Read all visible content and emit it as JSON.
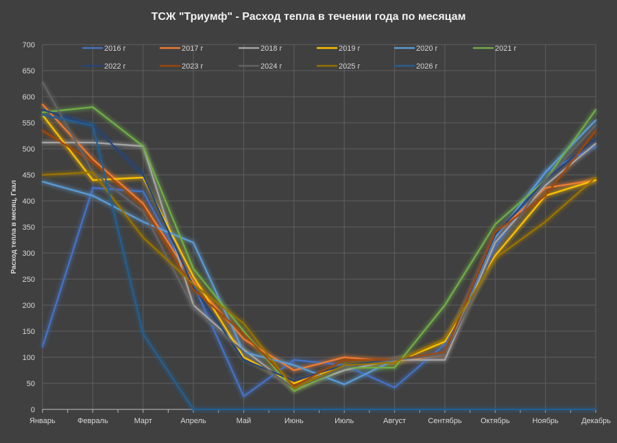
{
  "chart_data": {
    "type": "line",
    "title": "ТСЖ \"Триумф\" - Расход тепла в течении года по месяцам",
    "ylabel": "Расход тепла в месяц, Гкал",
    "xlabel": "",
    "ylim": [
      0,
      700
    ],
    "yticks": [
      0,
      50,
      100,
      150,
      200,
      250,
      300,
      350,
      400,
      450,
      500,
      550,
      600,
      650,
      700
    ],
    "grid": true,
    "legend_position": "top",
    "categories": [
      "Январь",
      "Февраль",
      "Март",
      "Апрель",
      "Май",
      "Июнь",
      "Июль",
      "Август",
      "Сентябрь",
      "Октябрь",
      "Ноябрь",
      "Декабрь"
    ],
    "series": [
      {
        "name": "2016 г",
        "color": "#4472c4",
        "values": [
          120,
          425,
          418,
          240,
          25,
          95,
          85,
          42,
          125,
          310,
          455,
          505
        ]
      },
      {
        "name": "2017 г",
        "color": "#ed7d31",
        "values": [
          585,
          480,
          395,
          245,
          135,
          75,
          100,
          92,
          105,
          335,
          425,
          440
        ]
      },
      {
        "name": "2018 г",
        "color": "#a5a5a5",
        "values": [
          512,
          512,
          505,
          200,
          115,
          40,
          75,
          95,
          95,
          320,
          430,
          510
        ]
      },
      {
        "name": "2019 г",
        "color": "#ffc000",
        "values": [
          565,
          440,
          445,
          255,
          100,
          50,
          85,
          90,
          130,
          295,
          410,
          440
        ]
      },
      {
        "name": "2020 г",
        "color": "#5b9bd5",
        "values": [
          437,
          410,
          360,
          320,
          110,
          85,
          48,
          95,
          110,
          330,
          455,
          555
        ]
      },
      {
        "name": "2021 г",
        "color": "#70ad47",
        "values": [
          570,
          580,
          505,
          270,
          150,
          35,
          80,
          80,
          200,
          355,
          440,
          575
        ]
      },
      {
        "name": "2022 г",
        "color": "#264478",
        "values": [
          575,
          545,
          450,
          235,
          95,
          55,
          85,
          95,
          110,
          335,
          440,
          520
        ]
      },
      {
        "name": "2023 г",
        "color": "#9e480e",
        "values": [
          535,
          475,
          390,
          230,
          145,
          45,
          95,
          95,
          110,
          340,
          410,
          535
        ]
      },
      {
        "name": "2024 г",
        "color": "#636363",
        "values": [
          628,
          455,
          380,
          195,
          110,
          40,
          80,
          95,
          105,
          305,
          440,
          545
        ]
      },
      {
        "name": "2025 г",
        "color": "#997300",
        "values": [
          450,
          455,
          330,
          240,
          165,
          40,
          85,
          90,
          135,
          290,
          360,
          445
        ]
      },
      {
        "name": "2026 г",
        "color": "#255e91",
        "values": [
          565,
          545,
          145,
          0,
          0,
          0,
          0,
          0,
          0,
          0,
          0,
          0
        ]
      }
    ]
  }
}
